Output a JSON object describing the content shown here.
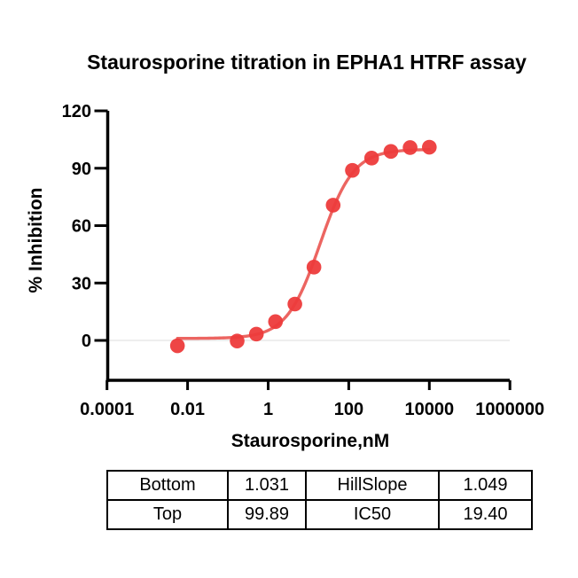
{
  "chart_data": {
    "type": "scatter",
    "title": "Staurosporine titration in EPHA1 HTRF assay",
    "xlabel": "Staurosporine,nM",
    "ylabel": "% Inhibition",
    "x_scale": "log",
    "xlim": [
      0.0001,
      1000000
    ],
    "ylim": [
      -20,
      120
    ],
    "x_tick_values": [
      0.0001,
      0.01,
      1,
      100,
      10000,
      1000000
    ],
    "x_tick_labels": [
      "0.0001",
      "0.01",
      "1",
      "100",
      "10000",
      "1000000"
    ],
    "y_tick_values": [
      0,
      30,
      60,
      90,
      120
    ],
    "y_tick_labels": [
      "0",
      "30",
      "60",
      "90",
      "120"
    ],
    "grid": "zero-baseline-only",
    "legend": "none",
    "baseline_value": 0,
    "series": [
      {
        "name": "Staurosporine",
        "marker": "circle",
        "x": [
          0.0056,
          0.17,
          0.51,
          1.52,
          4.6,
          13.7,
          41,
          123,
          370,
          1111,
          3333,
          10000
        ],
        "y": [
          -2.8,
          -0.3,
          3.3,
          9.8,
          19.0,
          38.3,
          70.7,
          88.9,
          95.3,
          98.8,
          100.8,
          101.0
        ]
      }
    ],
    "fit": {
      "model": "4PL sigmoidal dose-response",
      "bottom": 1.031,
      "top": 99.89,
      "hillslope": 1.049,
      "ic50": 19.4,
      "curve_x_range": [
        0.0056,
        10000
      ]
    },
    "colors": {
      "points": "#ed3b3b",
      "curve": "#e9504b",
      "baseline": "#e9e9e9",
      "axis": "#000000",
      "text": "#000000"
    }
  },
  "fit_table": {
    "rows": [
      {
        "cells": [
          "Bottom",
          "1.031",
          "HillSlope",
          "1.049"
        ]
      },
      {
        "cells": [
          "Top",
          "99.89",
          "IC50",
          "19.40"
        ]
      }
    ]
  }
}
